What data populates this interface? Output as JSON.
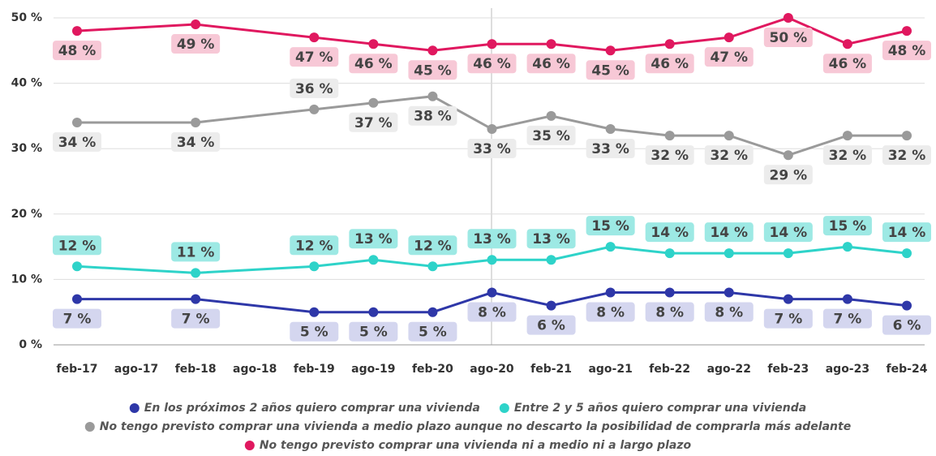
{
  "chart_data": {
    "type": "line",
    "categories": [
      "feb-17",
      "ago-17",
      "feb-18",
      "ago-18",
      "feb-19",
      "ago-19",
      "feb-20",
      "ago-20",
      "feb-21",
      "ago-21",
      "feb-22",
      "ago-22",
      "feb-23",
      "ago-23",
      "feb-24"
    ],
    "series": [
      {
        "name": "En los próximos 2 años quiero comprar una vivienda",
        "color": "#2e37a8",
        "values": [
          7,
          null,
          7,
          null,
          5,
          5,
          5,
          8,
          6,
          8,
          8,
          8,
          7,
          7,
          6
        ],
        "value_labels": [
          "7 %",
          null,
          "7 %",
          null,
          "5 %",
          "5 %",
          "5 %",
          "8 %",
          "6 %",
          "8 %",
          "8 %",
          "8 %",
          "7 %",
          "7 %",
          "6 %"
        ]
      },
      {
        "name": "Entre 2 y 5 años quiero comprar una vivienda",
        "color": "#2ed3c9",
        "values": [
          12,
          null,
          11,
          null,
          12,
          13,
          12,
          13,
          13,
          15,
          14,
          14,
          14,
          15,
          14
        ],
        "value_labels": [
          "12 %",
          null,
          "11 %",
          null,
          "12 %",
          "13 %",
          "12 %",
          "13 %",
          "13 %",
          "15 %",
          "14 %",
          "14 %",
          "14 %",
          "15 %",
          "14 %"
        ]
      },
      {
        "name": "No tengo previsto comprar una vivienda a medio plazo aunque no descarto la posibilidad de comprarla más adelante",
        "color": "#9a9a9a",
        "values": [
          34,
          null,
          34,
          null,
          36,
          37,
          38,
          33,
          35,
          33,
          32,
          32,
          29,
          32,
          32
        ],
        "value_labels": [
          "34 %",
          null,
          "34 %",
          null,
          "36 %",
          "37 %",
          "38 %",
          "33 %",
          "35 %",
          "33 %",
          "32 %",
          "32 %",
          "29 %",
          "32 %",
          "32 %"
        ]
      },
      {
        "name": "No tengo previsto comprar una vivienda ni a medio ni a largo plazo",
        "color": "#e0185f",
        "values": [
          48,
          null,
          49,
          null,
          47,
          46,
          45,
          46,
          46,
          45,
          46,
          47,
          50,
          46,
          48
        ],
        "value_labels": [
          "48 %",
          null,
          "49 %",
          null,
          "47 %",
          "46 %",
          "45 %",
          "46 %",
          "46 %",
          "45 %",
          "46 %",
          "47 %",
          "50 %",
          "46 %",
          "48 %"
        ]
      }
    ],
    "ylim": [
      0,
      50
    ],
    "yticks": [
      {
        "value": 0,
        "label": "0 %"
      },
      {
        "value": 10,
        "label": "10 %"
      },
      {
        "value": 20,
        "label": "20 %"
      },
      {
        "value": 30,
        "label": "30 %"
      },
      {
        "value": 40,
        "label": "40 %"
      },
      {
        "value": 50,
        "label": "50 %"
      }
    ],
    "grid": true
  }
}
